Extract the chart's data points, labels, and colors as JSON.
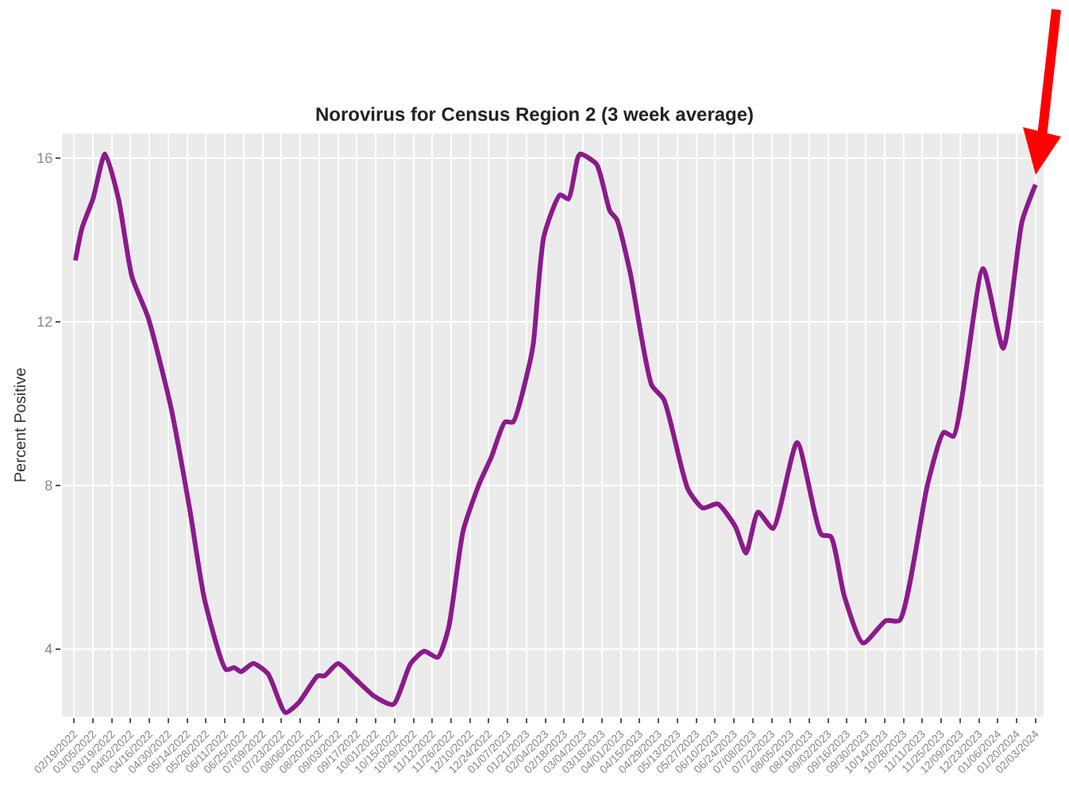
{
  "chart_data": {
    "type": "line",
    "title": "Norovirus for Census Region 2 (3 week average)",
    "ylabel": "Percent Positive",
    "x": [
      "2022-02-20",
      "2022-02-25",
      "2022-03-05",
      "2022-03-14",
      "2022-03-24",
      "2022-04-03",
      "2022-04-15",
      "2022-05-02",
      "2022-05-16",
      "2022-05-27",
      "2022-06-12",
      "2022-06-18",
      "2022-06-23",
      "2022-07-02",
      "2022-07-13",
      "2022-07-26",
      "2022-08-05",
      "2022-08-19",
      "2022-08-24",
      "2022-09-03",
      "2022-09-15",
      "2022-09-30",
      "2022-10-14",
      "2022-10-27",
      "2022-11-06",
      "2022-11-16",
      "2022-11-24",
      "2022-12-05",
      "2022-12-17",
      "2022-12-26",
      "2023-01-05",
      "2023-01-11",
      "2023-01-22",
      "2023-01-26",
      "2023-02-03",
      "2023-02-15",
      "2023-02-21",
      "2023-02-28",
      "2023-03-02",
      "2023-03-14",
      "2023-03-24",
      "2023-03-29",
      "2023-04-08",
      "2023-04-24",
      "2023-05-03",
      "2023-05-21",
      "2023-06-01",
      "2023-06-12",
      "2023-06-25",
      "2023-07-03",
      "2023-07-12",
      "2023-07-23",
      "2023-08-10",
      "2023-08-28",
      "2023-09-04",
      "2023-09-14",
      "2023-09-28",
      "2023-10-15",
      "2023-10-25",
      "2023-11-15",
      "2023-11-27",
      "2023-12-04",
      "2023-12-26",
      "2024-01-10",
      "2024-01-24",
      "2024-02-03"
    ],
    "series": [
      {
        "color": "#8b1a8b",
        "values": [
          13.5,
          14.3,
          15.0,
          16.1,
          15.0,
          13.1,
          12.1,
          9.9,
          7.4,
          5.2,
          3.5,
          3.55,
          3.45,
          3.65,
          3.4,
          2.45,
          2.7,
          3.35,
          3.35,
          3.65,
          3.3,
          2.85,
          2.65,
          3.65,
          3.95,
          3.8,
          4.5,
          6.9,
          8.05,
          8.7,
          9.55,
          9.55,
          10.8,
          11.45,
          14.1,
          15.1,
          15.0,
          16.0,
          16.1,
          15.85,
          14.7,
          14.5,
          13.2,
          10.45,
          10.1,
          7.9,
          7.45,
          7.55,
          7.0,
          6.35,
          7.35,
          6.95,
          9.05,
          6.8,
          6.75,
          5.3,
          4.15,
          4.7,
          4.7,
          8.05,
          9.3,
          9.2,
          13.3,
          11.35,
          14.45,
          15.35
        ]
      }
    ],
    "ylim": [
      2.35,
      16.6
    ],
    "yticks": [
      4,
      8,
      12,
      16
    ],
    "xlim": [
      "2022-02-10",
      "2024-02-09"
    ],
    "xticks": [
      {
        "value": "2022-02-19",
        "label": "02/19/2022"
      },
      {
        "value": "2022-03-05",
        "label": "03/05/2022"
      },
      {
        "value": "2022-03-19",
        "label": "03/19/2022"
      },
      {
        "value": "2022-04-02",
        "label": "04/02/2022"
      },
      {
        "value": "2022-04-16",
        "label": "04/16/2022"
      },
      {
        "value": "2022-04-30",
        "label": "04/30/2022"
      },
      {
        "value": "2022-05-14",
        "label": "05/14/2022"
      },
      {
        "value": "2022-05-28",
        "label": "05/28/2022"
      },
      {
        "value": "2022-06-11",
        "label": "06/11/2022"
      },
      {
        "value": "2022-06-25",
        "label": "06/25/2022"
      },
      {
        "value": "2022-07-09",
        "label": "07/09/2022"
      },
      {
        "value": "2022-07-23",
        "label": "07/23/2022"
      },
      {
        "value": "2022-08-06",
        "label": "08/06/2022"
      },
      {
        "value": "2022-08-20",
        "label": "08/20/2022"
      },
      {
        "value": "2022-09-03",
        "label": "09/03/2022"
      },
      {
        "value": "2022-09-17",
        "label": "09/17/2022"
      },
      {
        "value": "2022-10-01",
        "label": "10/01/2022"
      },
      {
        "value": "2022-10-15",
        "label": "10/15/2022"
      },
      {
        "value": "2022-10-29",
        "label": "10/29/2022"
      },
      {
        "value": "2022-11-12",
        "label": "11/12/2022"
      },
      {
        "value": "2022-11-26",
        "label": "11/26/2022"
      },
      {
        "value": "2022-12-10",
        "label": "12/10/2022"
      },
      {
        "value": "2022-12-24",
        "label": "12/24/2022"
      },
      {
        "value": "2023-01-07",
        "label": "01/07/2023"
      },
      {
        "value": "2023-01-21",
        "label": "01/21/2023"
      },
      {
        "value": "2023-02-04",
        "label": "02/04/2023"
      },
      {
        "value": "2023-02-18",
        "label": "02/18/2023"
      },
      {
        "value": "2023-03-04",
        "label": "03/04/2023"
      },
      {
        "value": "2023-03-18",
        "label": "03/18/2023"
      },
      {
        "value": "2023-04-01",
        "label": "04/01/2023"
      },
      {
        "value": "2023-04-15",
        "label": "04/15/2023"
      },
      {
        "value": "2023-04-29",
        "label": "04/29/2023"
      },
      {
        "value": "2023-05-13",
        "label": "05/13/2023"
      },
      {
        "value": "2023-05-27",
        "label": "05/27/2023"
      },
      {
        "value": "2023-06-10",
        "label": "06/10/2023"
      },
      {
        "value": "2023-06-24",
        "label": "06/24/2023"
      },
      {
        "value": "2023-07-08",
        "label": "07/08/2023"
      },
      {
        "value": "2023-07-22",
        "label": "07/22/2023"
      },
      {
        "value": "2023-08-05",
        "label": "08/05/2023"
      },
      {
        "value": "2023-08-19",
        "label": "08/19/2023"
      },
      {
        "value": "2023-09-02",
        "label": "09/02/2023"
      },
      {
        "value": "2023-09-16",
        "label": "09/16/2023"
      },
      {
        "value": "2023-09-30",
        "label": "09/30/2023"
      },
      {
        "value": "2023-10-14",
        "label": "10/14/2023"
      },
      {
        "value": "2023-10-28",
        "label": "10/28/2023"
      },
      {
        "value": "2023-11-11",
        "label": "11/11/2023"
      },
      {
        "value": "2023-11-25",
        "label": "11/25/2023"
      },
      {
        "value": "2023-12-09",
        "label": "12/09/2023"
      },
      {
        "value": "2023-12-23",
        "label": "12/23/2023"
      },
      {
        "value": "2024-01-06",
        "label": "01/06/2024"
      },
      {
        "value": "2024-01-20",
        "label": "01/20/2024"
      },
      {
        "value": "2024-02-03",
        "label": "02/03/2024"
      }
    ],
    "grid": true,
    "marker": "none",
    "line_style": "solid"
  }
}
